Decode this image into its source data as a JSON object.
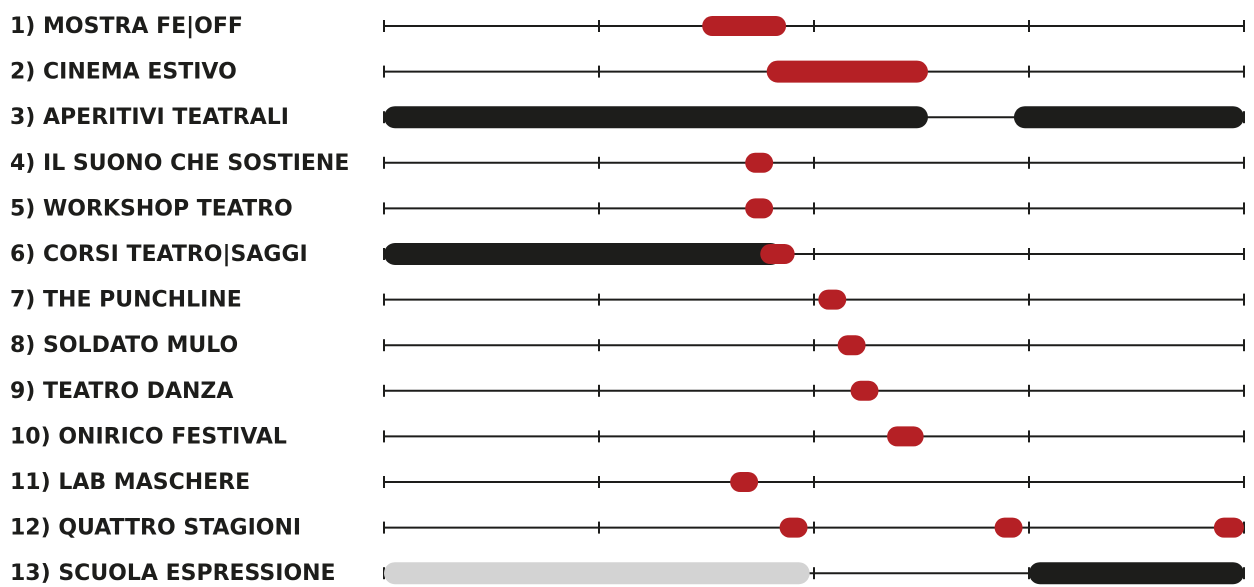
{
  "chart_data": {
    "type": "timeline",
    "x_range": [
      0,
      4
    ],
    "ticks": [
      0,
      1,
      2,
      3,
      4
    ],
    "colors": {
      "red": "#b52025",
      "black": "#1d1d1b",
      "grey": "#d3d3d3",
      "line": "#1d1d1b"
    },
    "rows": [
      {
        "label": "1) MOSTRA FE|OFF",
        "segments": [
          {
            "start": 1.48,
            "end": 1.87,
            "color": "red"
          }
        ]
      },
      {
        "label": "2) CINEMA ESTIVO",
        "segments": [
          {
            "start": 1.78,
            "end": 2.53,
            "color": "red"
          }
        ]
      },
      {
        "label": "3) APERITIVI TEATRALI",
        "segments": [
          {
            "start": 0.0,
            "end": 2.53,
            "color": "black"
          },
          {
            "start": 2.93,
            "end": 4.0,
            "color": "black"
          }
        ]
      },
      {
        "label": "4) IL SUONO CHE SOSTIENE",
        "segments": [
          {
            "start": 1.68,
            "end": 1.81,
            "color": "red"
          }
        ]
      },
      {
        "label": "5) WORKSHOP TEATRO",
        "segments": [
          {
            "start": 1.68,
            "end": 1.81,
            "color": "red"
          }
        ]
      },
      {
        "label": "6) CORSI TEATRO|SAGGI",
        "segments": [
          {
            "start": 0.0,
            "end": 1.85,
            "color": "black"
          },
          {
            "start": 1.75,
            "end": 1.91,
            "color": "red"
          }
        ]
      },
      {
        "label": "7) THE PUNCHLINE",
        "segments": [
          {
            "start": 2.02,
            "end": 2.15,
            "color": "red"
          }
        ]
      },
      {
        "label": "8) SOLDATO MULO",
        "segments": [
          {
            "start": 2.11,
            "end": 2.24,
            "color": "red"
          }
        ]
      },
      {
        "label": "9) TEATRO DANZA",
        "segments": [
          {
            "start": 2.17,
            "end": 2.3,
            "color": "red"
          }
        ]
      },
      {
        "label": "10) ONIRICO FESTIVAL",
        "segments": [
          {
            "start": 2.34,
            "end": 2.51,
            "color": "red"
          }
        ]
      },
      {
        "label": "11) LAB MASCHERE",
        "segments": [
          {
            "start": 1.61,
            "end": 1.74,
            "color": "red"
          }
        ]
      },
      {
        "label": "12) QUATTRO STAGIONI",
        "segments": [
          {
            "start": 1.84,
            "end": 1.97,
            "color": "red"
          },
          {
            "start": 2.84,
            "end": 2.97,
            "color": "red"
          },
          {
            "start": 3.86,
            "end": 4.0,
            "color": "red"
          }
        ]
      },
      {
        "label": "13) SCUOLA ESPRESSIONE",
        "segments": [
          {
            "start": 0.0,
            "end": 1.98,
            "color": "grey"
          },
          {
            "start": 3.0,
            "end": 4.0,
            "color": "black"
          }
        ]
      }
    ]
  }
}
